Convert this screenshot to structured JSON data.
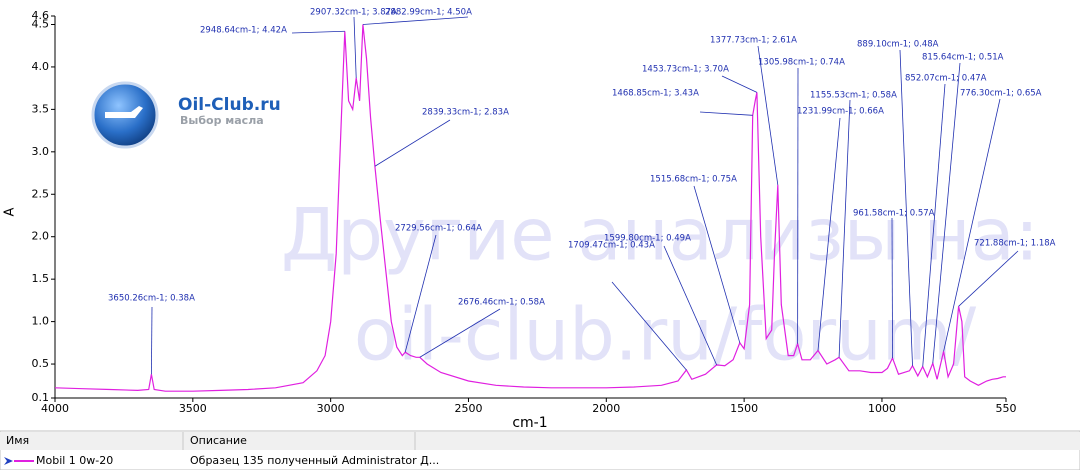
{
  "chart_data": {
    "type": "line",
    "xlabel": "cm-1",
    "ylabel": "A",
    "xlim": [
      4000,
      550
    ],
    "ylim": [
      0.1,
      4.6
    ],
    "xticks": [
      4000,
      3500,
      3000,
      2500,
      2000,
      1500,
      1000,
      550
    ],
    "yticks": [
      0.1,
      0.5,
      {
        "value": 1,
        "label": "1.0"
      },
      1.5,
      {
        "value": 2,
        "label": "2.0"
      },
      2.5,
      {
        "value": 3,
        "label": "3.0"
      },
      3.5,
      {
        "value": 4,
        "label": "4.0"
      },
      4.5,
      4.6
    ],
    "series": [
      {
        "name": "Mobil 1 0w-20",
        "color": "#e020e0",
        "x": [
          4000,
          3900,
          3800,
          3700,
          3660,
          3650.26,
          3640,
          3600,
          3500,
          3400,
          3300,
          3200,
          3100,
          3050,
          3020,
          3000,
          2980,
          2960,
          2948.64,
          2935,
          2920,
          2907.32,
          2895,
          2882.99,
          2870,
          2855,
          2839.33,
          2820,
          2800,
          2780,
          2760,
          2740,
          2729.56,
          2710,
          2690,
          2676.46,
          2650,
          2600,
          2500,
          2400,
          2300,
          2200,
          2100,
          2000,
          1900,
          1800,
          1740,
          1709.47,
          1690,
          1640,
          1599.8,
          1570,
          1540,
          1515.68,
          1500,
          1480,
          1468.85,
          1460,
          1453.73,
          1440,
          1420,
          1400,
          1390,
          1377.73,
          1365,
          1340,
          1320,
          1305.98,
          1290,
          1260,
          1231.99,
          1200,
          1170,
          1155.53,
          1120,
          1080,
          1040,
          1000,
          980,
          961.58,
          940,
          900,
          889.1,
          870,
          852.07,
          835,
          815.64,
          800,
          776.3,
          760,
          740,
          721.88,
          710,
          700,
          680,
          650,
          620,
          600,
          580,
          560,
          550
        ],
        "values": [
          0.22,
          0.21,
          0.2,
          0.19,
          0.2,
          0.38,
          0.2,
          0.18,
          0.18,
          0.19,
          0.2,
          0.22,
          0.28,
          0.42,
          0.6,
          1.0,
          1.8,
          3.5,
          4.42,
          3.6,
          3.5,
          3.87,
          3.6,
          4.5,
          4.1,
          3.4,
          2.83,
          2.2,
          1.6,
          1.0,
          0.7,
          0.6,
          0.64,
          0.6,
          0.58,
          0.58,
          0.5,
          0.4,
          0.3,
          0.25,
          0.23,
          0.22,
          0.22,
          0.22,
          0.23,
          0.25,
          0.3,
          0.43,
          0.32,
          0.38,
          0.49,
          0.48,
          0.55,
          0.75,
          0.68,
          1.2,
          3.43,
          3.6,
          3.7,
          2.0,
          0.8,
          0.9,
          1.8,
          2.61,
          1.2,
          0.6,
          0.6,
          0.74,
          0.55,
          0.55,
          0.66,
          0.5,
          0.55,
          0.58,
          0.42,
          0.42,
          0.4,
          0.4,
          0.45,
          0.57,
          0.38,
          0.42,
          0.48,
          0.36,
          0.47,
          0.35,
          0.51,
          0.32,
          0.65,
          0.35,
          0.5,
          1.18,
          1.0,
          0.35,
          0.3,
          0.25,
          0.3,
          0.32,
          0.33,
          0.35,
          0.35
        ]
      }
    ],
    "annotations": [
      {
        "text": "3650.26cm-1; 0.38A",
        "x": 3650.26,
        "y": 0.38
      },
      {
        "text": "2948.64cm-1; 4.42A",
        "x": 2948.64,
        "y": 4.42
      },
      {
        "text": "2907.32cm-1; 3.87A",
        "x": 2907.32,
        "y": 3.87
      },
      {
        "text": "2882.99cm-1; 4.50A",
        "x": 2882.99,
        "y": 4.5
      },
      {
        "text": "2839.33cm-1; 2.83A",
        "x": 2839.33,
        "y": 2.83
      },
      {
        "text": "2729.56cm-1; 0.64A",
        "x": 2729.56,
        "y": 0.64
      },
      {
        "text": "2676.46cm-1; 0.58A",
        "x": 2676.46,
        "y": 0.58
      },
      {
        "text": "1709.47cm-1; 0.43A",
        "x": 1709.47,
        "y": 0.43
      },
      {
        "text": "1599.80cm-1; 0.49A",
        "x": 1599.8,
        "y": 0.49
      },
      {
        "text": "1515.68cm-1; 0.75A",
        "x": 1515.68,
        "y": 0.75
      },
      {
        "text": "1468.85cm-1; 3.43A",
        "x": 1468.85,
        "y": 3.43
      },
      {
        "text": "1453.73cm-1; 3.70A",
        "x": 1453.73,
        "y": 3.7
      },
      {
        "text": "1377.73cm-1; 2.61A",
        "x": 1377.73,
        "y": 2.61
      },
      {
        "text": "1305.98cm-1; 0.74A",
        "x": 1305.98,
        "y": 0.74
      },
      {
        "text": "1231.99cm-1; 0.66A",
        "x": 1231.99,
        "y": 0.66
      },
      {
        "text": "1155.53cm-1; 0.58A",
        "x": 1155.53,
        "y": 0.58
      },
      {
        "text": "961.58cm-1; 0.57A",
        "x": 961.58,
        "y": 0.57
      },
      {
        "text": "889.10cm-1; 0.48A",
        "x": 889.1,
        "y": 0.48
      },
      {
        "text": "852.07cm-1; 0.47A",
        "x": 852.07,
        "y": 0.47
      },
      {
        "text": "815.64cm-1; 0.51A",
        "x": 815.64,
        "y": 0.51
      },
      {
        "text": "776.30cm-1; 0.65A",
        "x": 776.3,
        "y": 0.65
      },
      {
        "text": "721.88cm-1; 1.18A",
        "x": 721.88,
        "y": 1.18
      }
    ],
    "watermark": [
      "Другие анализы на:",
      "oil-club.ru/forum/"
    ],
    "logo": {
      "title": "Oil-Club.ru",
      "subtitle": "Выбор масла"
    },
    "table": {
      "headers": [
        "Имя",
        "Описание"
      ],
      "rows": [
        [
          "Mobil 1 0w-20",
          "Образец 135 полученный Administrator Д..."
        ]
      ]
    }
  }
}
